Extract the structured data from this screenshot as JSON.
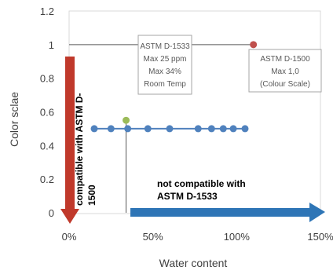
{
  "chart_data": {
    "type": "scatter",
    "xlabel": "Water content",
    "ylabel": "Color sclae",
    "xlim": [
      0,
      150
    ],
    "ylim": [
      0,
      1.2
    ],
    "x_ticks": [
      0,
      50,
      100,
      150
    ],
    "x_tick_labels": [
      "0%",
      "50%",
      "100%",
      "150%"
    ],
    "y_ticks": [
      0,
      0.2,
      0.4,
      0.6,
      0.8,
      1,
      1.2
    ],
    "y_tick_labels": [
      "0",
      "0.2",
      "0.4",
      "0.6",
      "0.8",
      "1",
      "1.2"
    ],
    "grid": false,
    "series": [
      {
        "color": "#4f81bd",
        "x": [
          15,
          25,
          35,
          47,
          60,
          77,
          85,
          92,
          98,
          105
        ],
        "y": [
          0.5,
          0.5,
          0.5,
          0.5,
          0.5,
          0.5,
          0.5,
          0.5,
          0.5,
          0.5
        ]
      }
    ],
    "reference_points": [
      {
        "x": 34,
        "y": 0.55,
        "color": "#9bbb59"
      },
      {
        "x": 110,
        "y": 1.0,
        "color": "#c0504d"
      }
    ],
    "reference_lines": {
      "horizontal": {
        "y": 1.0,
        "x_from": 0,
        "x_to": 110
      },
      "vertical": {
        "x": 34,
        "y_from": 0,
        "y_to": 0.55
      }
    },
    "annotations": {
      "astm_1533": [
        "ASTM D-1533",
        "Max 25 ppm",
        "Max 34%",
        "Room Temp"
      ],
      "astm_1500": [
        "ASTM D-1500",
        "Max 1,0",
        "(Colour Scale)"
      ],
      "compatible": [
        "compatible with  ASTM D-",
        "1500"
      ],
      "not_compatible": [
        "not compatible with",
        "ASTM D-1533"
      ]
    }
  },
  "colors": {
    "red_arrow": "#c0392b",
    "blue_arrow": "#2e75b6",
    "series": "#4f81bd",
    "axis": "#bfbfbf"
  }
}
